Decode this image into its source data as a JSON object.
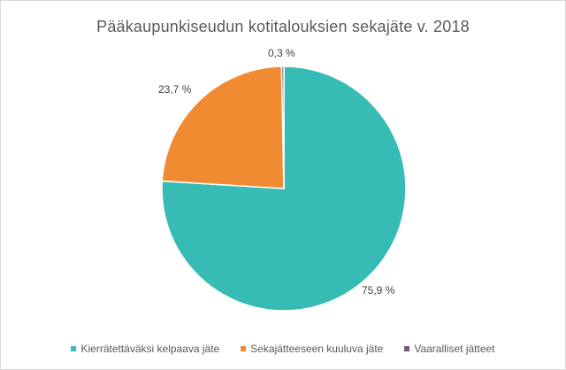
{
  "chart_data": {
    "type": "pie",
    "title": "Pääkaupunkiseudun kotitalouksien sekajäte v. 2018",
    "categories": [
      "Kierrätettäväksi kelpaava jäte",
      "Sekajätteeseen kuuluva jäte",
      "Vaaralliset jätteet"
    ],
    "values": [
      75.9,
      23.7,
      0.3
    ],
    "data_labels": [
      "75,9 %",
      "23,7 %",
      "0,3 %"
    ],
    "colors": [
      "#36bcb4",
      "#f08b32",
      "#7a5a74"
    ],
    "legend_position": "bottom",
    "start_angle_deg": 0,
    "direction": "clockwise"
  }
}
